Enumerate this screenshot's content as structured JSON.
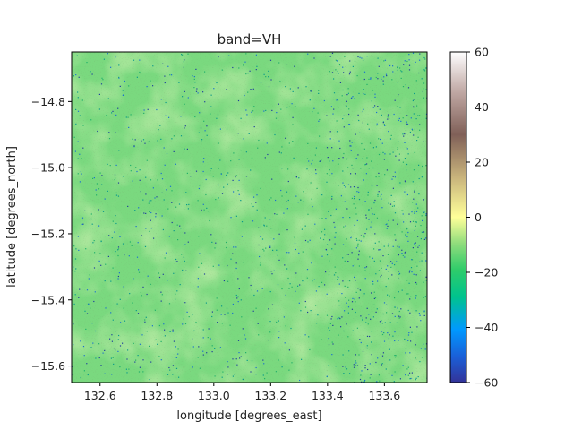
{
  "chart_data": {
    "type": "heatmap",
    "title": "band=VH",
    "xlabel": "longitude [degrees_east]",
    "ylabel": "latitude [degrees_north]",
    "xlim": [
      132.5,
      133.75
    ],
    "ylim": [
      -15.65,
      -14.65
    ],
    "x_ticks": [
      132.6,
      132.8,
      133.0,
      133.2,
      133.4,
      133.6
    ],
    "x_tick_labels": [
      "132.6",
      "132.8",
      "133.0",
      "133.2",
      "133.4",
      "133.6"
    ],
    "y_ticks": [
      -14.8,
      -15.0,
      -15.2,
      -15.4,
      -15.6
    ],
    "y_tick_labels": [
      "−14.8",
      "−15.0",
      "−15.2",
      "−15.4",
      "−15.6"
    ],
    "colorbar": {
      "colormap": "terrain",
      "vmin": -60,
      "vmax": 60,
      "ticks": [
        60,
        40,
        20,
        0,
        -20,
        -40,
        -60
      ],
      "tick_labels": [
        "60",
        "40",
        "20",
        "0",
        "−20",
        "−40",
        "−60"
      ]
    },
    "dominant_value_range": [
      -25,
      -15
    ],
    "dark_speckle_value": -45,
    "grid": false
  }
}
